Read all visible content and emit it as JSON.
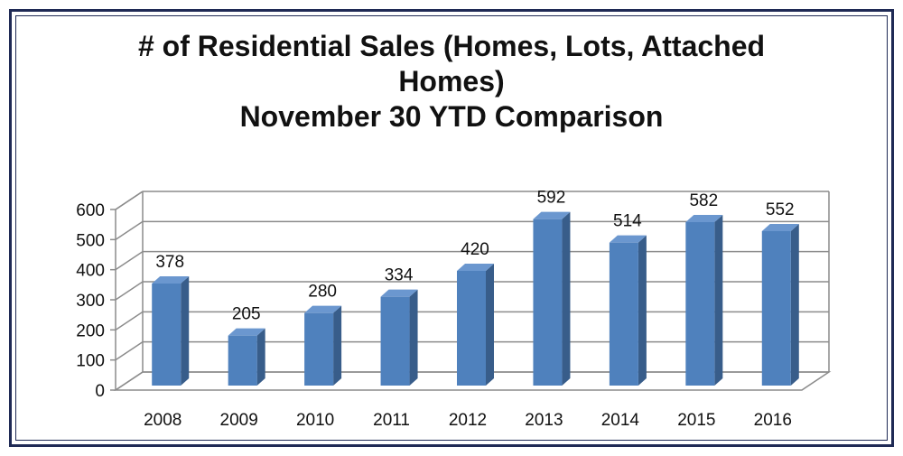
{
  "chart_data": {
    "type": "bar",
    "title_lines": [
      "# of Residential Sales (Homes, Lots, Attached",
      "Homes)",
      "November 30 YTD Comparison"
    ],
    "categories": [
      "2008",
      "2009",
      "2010",
      "2011",
      "2012",
      "2013",
      "2014",
      "2015",
      "2016"
    ],
    "values": [
      378,
      205,
      280,
      334,
      420,
      592,
      514,
      582,
      552
    ],
    "data_labels": [
      "378",
      "205",
      "280",
      "334",
      "420",
      "592",
      "514",
      "582",
      "552"
    ],
    "y_ticks": [
      "0",
      "100",
      "200",
      "300",
      "400",
      "500",
      "600"
    ],
    "ylim": [
      0,
      600
    ],
    "grid": true,
    "legend": "none",
    "bar_color": "#4f81bd",
    "bar_side_color": "#385d8a",
    "bar_top_color": "#6b97cf"
  }
}
